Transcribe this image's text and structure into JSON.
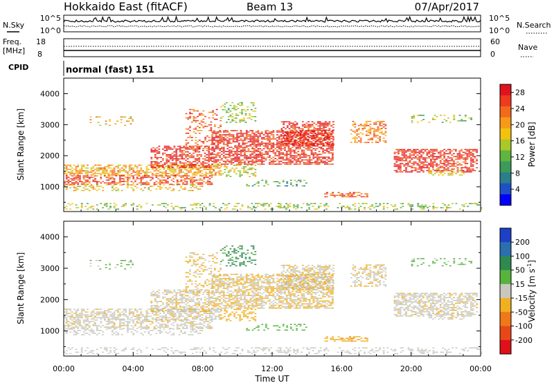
{
  "header": {
    "station": "Hokkaido East (fitACF)",
    "beam": "Beam 13",
    "date": "07/Apr/2017"
  },
  "status_panels": {
    "nsky_label": "N.Sky",
    "nsearch_label": "N.Search",
    "noise_ticks": [
      "10^5",
      "10^0"
    ],
    "freq_label": "Freq.",
    "freq_unit": "[MHz]",
    "freq_ticks": [
      "18",
      "8"
    ],
    "nave_label": "Nave",
    "nave_ticks": [
      "60",
      "0"
    ],
    "cpid_label": "CPID",
    "cpid_value": "normal (fast) 151"
  },
  "chart_data": [
    {
      "type": "heatmap",
      "name": "power",
      "ylabel": "Slant Range [km]",
      "y_ticks": [
        1000,
        2000,
        3000,
        4000
      ],
      "ylim": [
        200,
        4500
      ],
      "x_ticks": [
        "00:00",
        "04:00",
        "08:00",
        "12:00",
        "16:00",
        "20:00",
        "00:00"
      ],
      "xlim": [
        0,
        24
      ],
      "colorbar_label": "Power [dB]",
      "colorbar_ticks": [
        4,
        8,
        12,
        16,
        20,
        24,
        28
      ],
      "colorbar_range": [
        0,
        30
      ],
      "colorbar_colors": [
        "#0000ff",
        "#1e50c8",
        "#2b7e8c",
        "#3c9b5a",
        "#5fb53d",
        "#aac828",
        "#f4c20d",
        "#f79a17",
        "#f46a1c",
        "#ee3a1e",
        "#e0141e"
      ]
    },
    {
      "type": "heatmap",
      "name": "velocity",
      "ylabel": "Slant Range [km]",
      "y_ticks": [
        1000,
        2000,
        3000,
        4000
      ],
      "ylim": [
        200,
        4500
      ],
      "x_ticks": [
        "00:00",
        "04:00",
        "08:00",
        "12:00",
        "16:00",
        "20:00",
        "00:00"
      ],
      "xlim": [
        0,
        24
      ],
      "xlabel": "Time UT",
      "colorbar_label": "Velocity [m s",
      "colorbar_label_sup": "-1",
      "colorbar_label_end": "]",
      "colorbar_ticks": [
        "200",
        "100",
        "50",
        "15",
        "-15",
        "-50",
        "-100",
        "-200"
      ],
      "colorbar_colors": [
        "#1e40c8",
        "#2a6fb0",
        "#2e8a50",
        "#56b43c",
        "#c8c8c0",
        "#f0b020",
        "#f07818",
        "#e84818",
        "#e01018"
      ]
    }
  ]
}
